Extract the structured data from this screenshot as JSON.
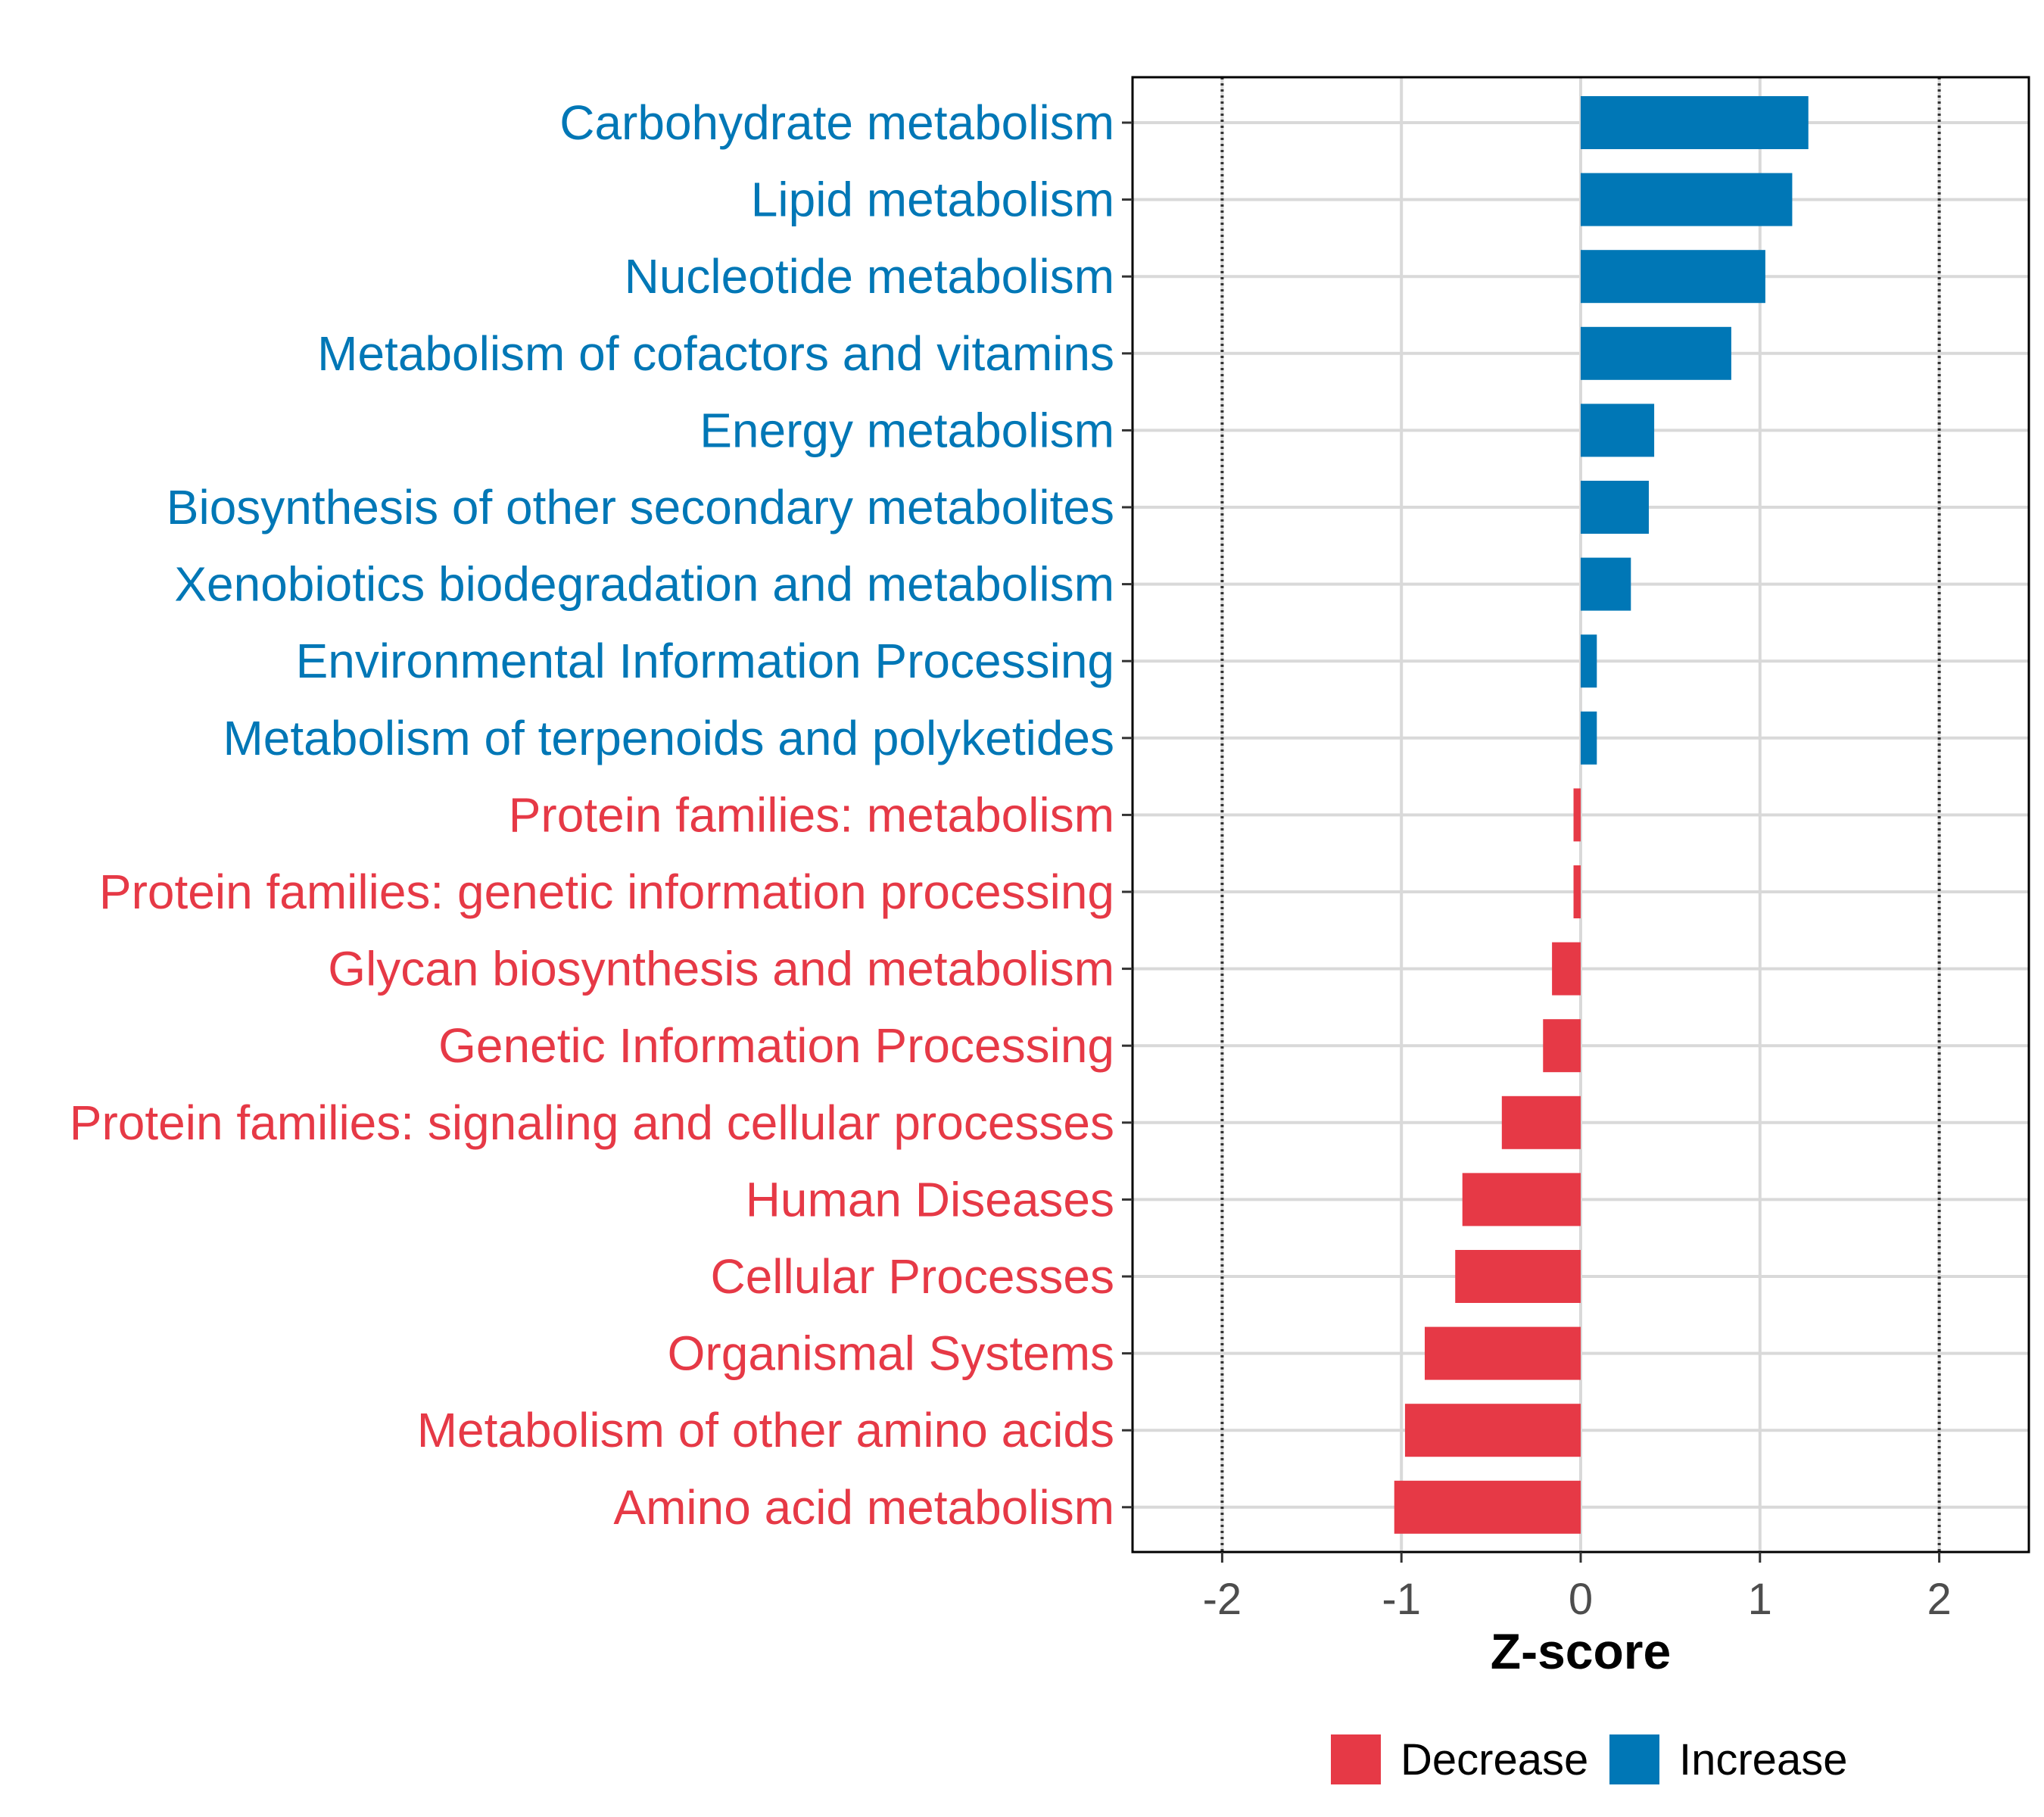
{
  "chart_data": {
    "type": "bar",
    "orientation": "horizontal",
    "categories": [
      "Carbohydrate metabolism",
      "Lipid metabolism",
      "Nucleotide metabolism",
      "Metabolism of cofactors and vitamins",
      "Energy metabolism",
      "Biosynthesis of other secondary metabolites",
      "Xenobiotics biodegradation and metabolism",
      "Environmental Information Processing",
      "Metabolism of terpenoids and polyketides",
      "Protein families: metabolism",
      "Protein families: genetic information processing",
      "Glycan biosynthesis and metabolism",
      "Genetic Information Processing",
      "Protein families: signaling and cellular processes",
      "Human Diseases",
      "Cellular Processes",
      "Organismal Systems",
      "Metabolism of other amino acids",
      "Amino acid metabolism"
    ],
    "values": [
      1.27,
      1.18,
      1.03,
      0.84,
      0.41,
      0.38,
      0.28,
      0.09,
      0.09,
      -0.04,
      -0.04,
      -0.16,
      -0.21,
      -0.44,
      -0.66,
      -0.7,
      -0.87,
      -0.98,
      -1.04
    ],
    "groups": [
      "Increase",
      "Increase",
      "Increase",
      "Increase",
      "Increase",
      "Increase",
      "Increase",
      "Increase",
      "Increase",
      "Decrease",
      "Decrease",
      "Decrease",
      "Decrease",
      "Decrease",
      "Decrease",
      "Decrease",
      "Decrease",
      "Decrease",
      "Decrease"
    ],
    "xlabel": "Z-score",
    "ylabel": "",
    "xlim": [
      -2.5,
      2.5
    ],
    "xticks": [
      "-2",
      "-1",
      "0",
      "1",
      "2"
    ],
    "xtick_values": [
      -2,
      -1,
      0,
      1,
      2
    ],
    "reference_lines": [
      -2,
      2
    ],
    "grid": true,
    "legend": {
      "position": "bottom",
      "entries": [
        {
          "label": "Decrease",
          "color": "#e63946"
        },
        {
          "label": "Increase",
          "color": "#0077b6"
        }
      ]
    },
    "colors": {
      "Increase": "#0077b6",
      "Decrease": "#e63946"
    }
  }
}
